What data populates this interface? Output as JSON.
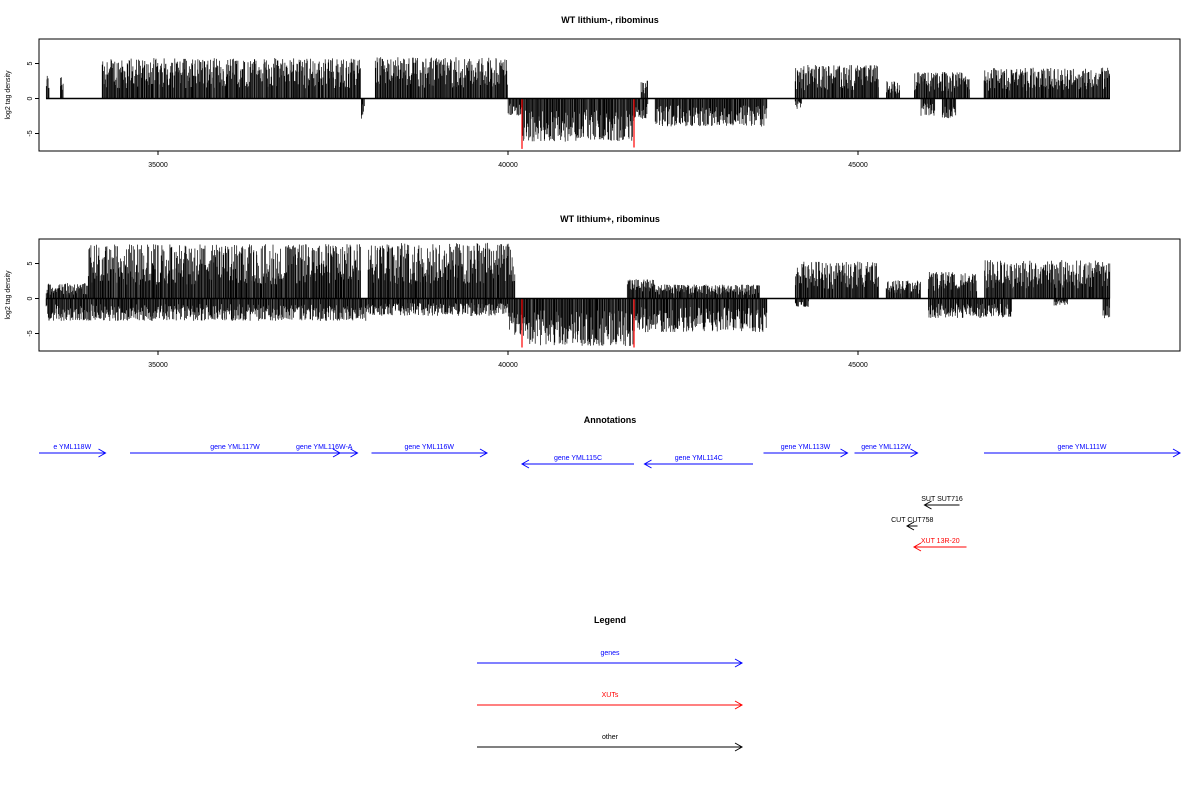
{
  "chart_data": [
    {
      "type": "bar",
      "title": "WT lithium-, ribominus",
      "xlabel": "",
      "ylabel": "log2 tag density",
      "xlim": [
        33300,
        49600
      ],
      "ylim": [
        -7.5,
        8.5
      ],
      "xticks": [
        35000,
        40000,
        45000
      ],
      "xtick_labels": [
        "35000",
        "40000",
        "45000"
      ],
      "yticks": [
        -5,
        0,
        5
      ],
      "ytick_labels": [
        "-5",
        "0",
        "5"
      ],
      "data_span": [
        33400,
        48600
      ],
      "baseline": 0,
      "pos_color": "#000000",
      "highlight_color": "#ff0000",
      "highlights": [
        {
          "x": 40200,
          "y": -7.2
        },
        {
          "x": 41800,
          "y": -7.0
        }
      ],
      "positive_regions": [
        [
          33400,
          33450,
          3.5
        ],
        [
          33600,
          33650,
          3.2
        ],
        [
          34200,
          37900,
          5.8
        ],
        [
          38100,
          40000,
          5.9
        ],
        [
          41900,
          42000,
          2.6
        ],
        [
          44100,
          45300,
          4.8
        ],
        [
          45400,
          45600,
          2.5
        ],
        [
          45800,
          46600,
          3.8
        ],
        [
          46800,
          48600,
          4.4
        ]
      ],
      "negative_regions": [
        [
          37900,
          37950,
          -3.3
        ],
        [
          40000,
          40200,
          -2.5
        ],
        [
          40200,
          41800,
          -6.2
        ],
        [
          41800,
          42000,
          -3.0
        ],
        [
          42100,
          43700,
          -4.0
        ],
        [
          44100,
          44200,
          -1.5
        ],
        [
          45900,
          46100,
          -2.5
        ],
        [
          46200,
          46400,
          -2.8
        ]
      ],
      "grid": false,
      "legend": "none"
    },
    {
      "type": "bar",
      "title": "WT lithium+, ribominus",
      "xlabel": "",
      "ylabel": "log2 tag density",
      "xlim": [
        33300,
        49600
      ],
      "ylim": [
        -7.5,
        8.5
      ],
      "xticks": [
        35000,
        40000,
        45000
      ],
      "xtick_labels": [
        "35000",
        "40000",
        "45000"
      ],
      "yticks": [
        -5,
        0,
        5
      ],
      "ytick_labels": [
        "-5",
        "0",
        "5"
      ],
      "data_span": [
        33400,
        48600
      ],
      "baseline": 0,
      "pos_color": "#000000",
      "highlight_color": "#ff0000",
      "highlights": [
        {
          "x": 40200,
          "y": -7.0
        },
        {
          "x": 41800,
          "y": -7.0
        }
      ],
      "positive_regions": [
        [
          33400,
          34000,
          2.2
        ],
        [
          34000,
          37900,
          7.8
        ],
        [
          38000,
          40100,
          8.0
        ],
        [
          41700,
          42100,
          2.8
        ],
        [
          42100,
          43600,
          2.0
        ],
        [
          44100,
          45300,
          5.3
        ],
        [
          45400,
          45900,
          2.6
        ],
        [
          46000,
          46700,
          3.8
        ],
        [
          46800,
          48600,
          5.5
        ]
      ],
      "negative_regions": [
        [
          33400,
          38000,
          -3.2
        ],
        [
          38000,
          40000,
          -2.5
        ],
        [
          40000,
          40200,
          -5.2
        ],
        [
          40200,
          41800,
          -6.8
        ],
        [
          41800,
          43700,
          -4.8
        ],
        [
          44100,
          44300,
          -1.2
        ],
        [
          46000,
          47200,
          -2.8
        ],
        [
          47800,
          48000,
          -1.0
        ],
        [
          48500,
          48600,
          -2.8
        ]
      ],
      "grid": false,
      "legend": "none"
    }
  ],
  "annotations": {
    "title": "Annotations",
    "xlim": [
      33300,
      49600
    ],
    "features": [
      {
        "label": "e YML118W",
        "start": 33300,
        "end": 34250,
        "strand": "+",
        "row": 0,
        "color": "#0000ff"
      },
      {
        "label": "gene YML117W",
        "start": 34600,
        "end": 37600,
        "strand": "+",
        "row": 0,
        "color": "#0000ff"
      },
      {
        "label": "gene YML116W-A",
        "start": 36900,
        "end": 37850,
        "strand": "+",
        "row": 0,
        "color": "#0000ff"
      },
      {
        "label": "gene YML116W",
        "start": 38050,
        "end": 39700,
        "strand": "+",
        "row": 0,
        "color": "#0000ff"
      },
      {
        "label": "gene YML115C",
        "start": 40200,
        "end": 41800,
        "strand": "-",
        "row": 1,
        "color": "#0000ff"
      },
      {
        "label": "gene YML114C",
        "start": 41950,
        "end": 43500,
        "strand": "-",
        "row": 1,
        "color": "#0000ff"
      },
      {
        "label": "gene YML113W",
        "start": 43650,
        "end": 44850,
        "strand": "+",
        "row": 0,
        "color": "#0000ff"
      },
      {
        "label": "gene YML112W",
        "start": 44950,
        "end": 45850,
        "strand": "+",
        "row": 0,
        "color": "#0000ff"
      },
      {
        "label": "gene YML111W",
        "start": 46800,
        "end": 49600,
        "strand": "+",
        "row": 0,
        "color": "#0000ff"
      },
      {
        "label": "SUT SUT716",
        "start": 45950,
        "end": 46450,
        "strand": "-",
        "row": 3,
        "color": "#000000"
      },
      {
        "label": "CUT CUT758",
        "start": 45700,
        "end": 45850,
        "strand": "-",
        "row": 4,
        "color": "#000000"
      },
      {
        "label": "XUT 13R-20",
        "start": 45800,
        "end": 46550,
        "strand": "-",
        "row": 5,
        "color": "#ff0000"
      }
    ]
  },
  "legend": {
    "title": "Legend",
    "items": [
      {
        "label": "genes",
        "color": "#0000ff"
      },
      {
        "label": "XUTs",
        "color": "#ff0000"
      },
      {
        "label": "other",
        "color": "#000000"
      }
    ]
  }
}
